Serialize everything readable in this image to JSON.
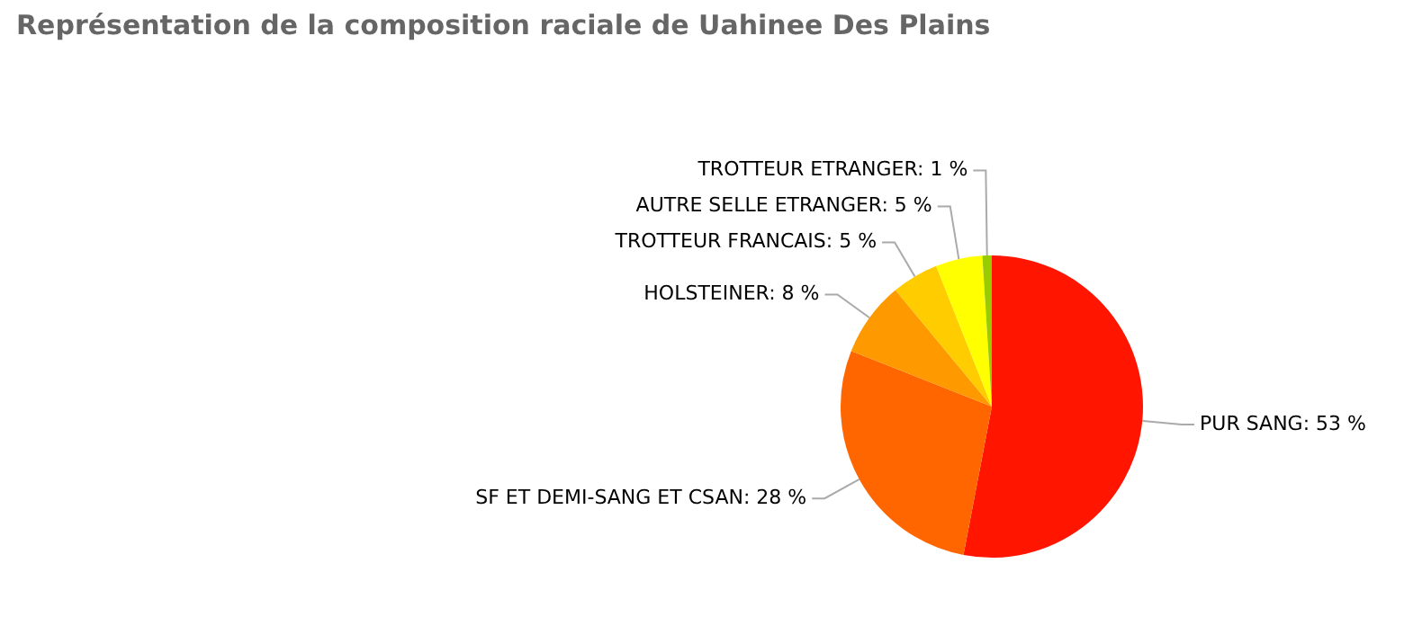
{
  "chart_data": {
    "type": "pie",
    "title": "Représentation de la composition raciale de Uahinee Des Plains",
    "categories": [
      "PUR SANG",
      "SF ET DEMI-SANG ET CSAN",
      "HOLSTEINER",
      "TROTTEUR FRANCAIS",
      "AUTRE SELLE ETRANGER",
      "TROTTEUR ETRANGER"
    ],
    "values": [
      53,
      28,
      8,
      5,
      5,
      1
    ],
    "value_labels": [
      "53 %",
      "28 %",
      "8 %",
      "5 %",
      "5 %",
      "1 %"
    ],
    "colors": [
      "#ff1500",
      "#ff6600",
      "#ff9900",
      "#ffcc00",
      "#ffff00",
      "#99cc00"
    ],
    "legend": false
  }
}
